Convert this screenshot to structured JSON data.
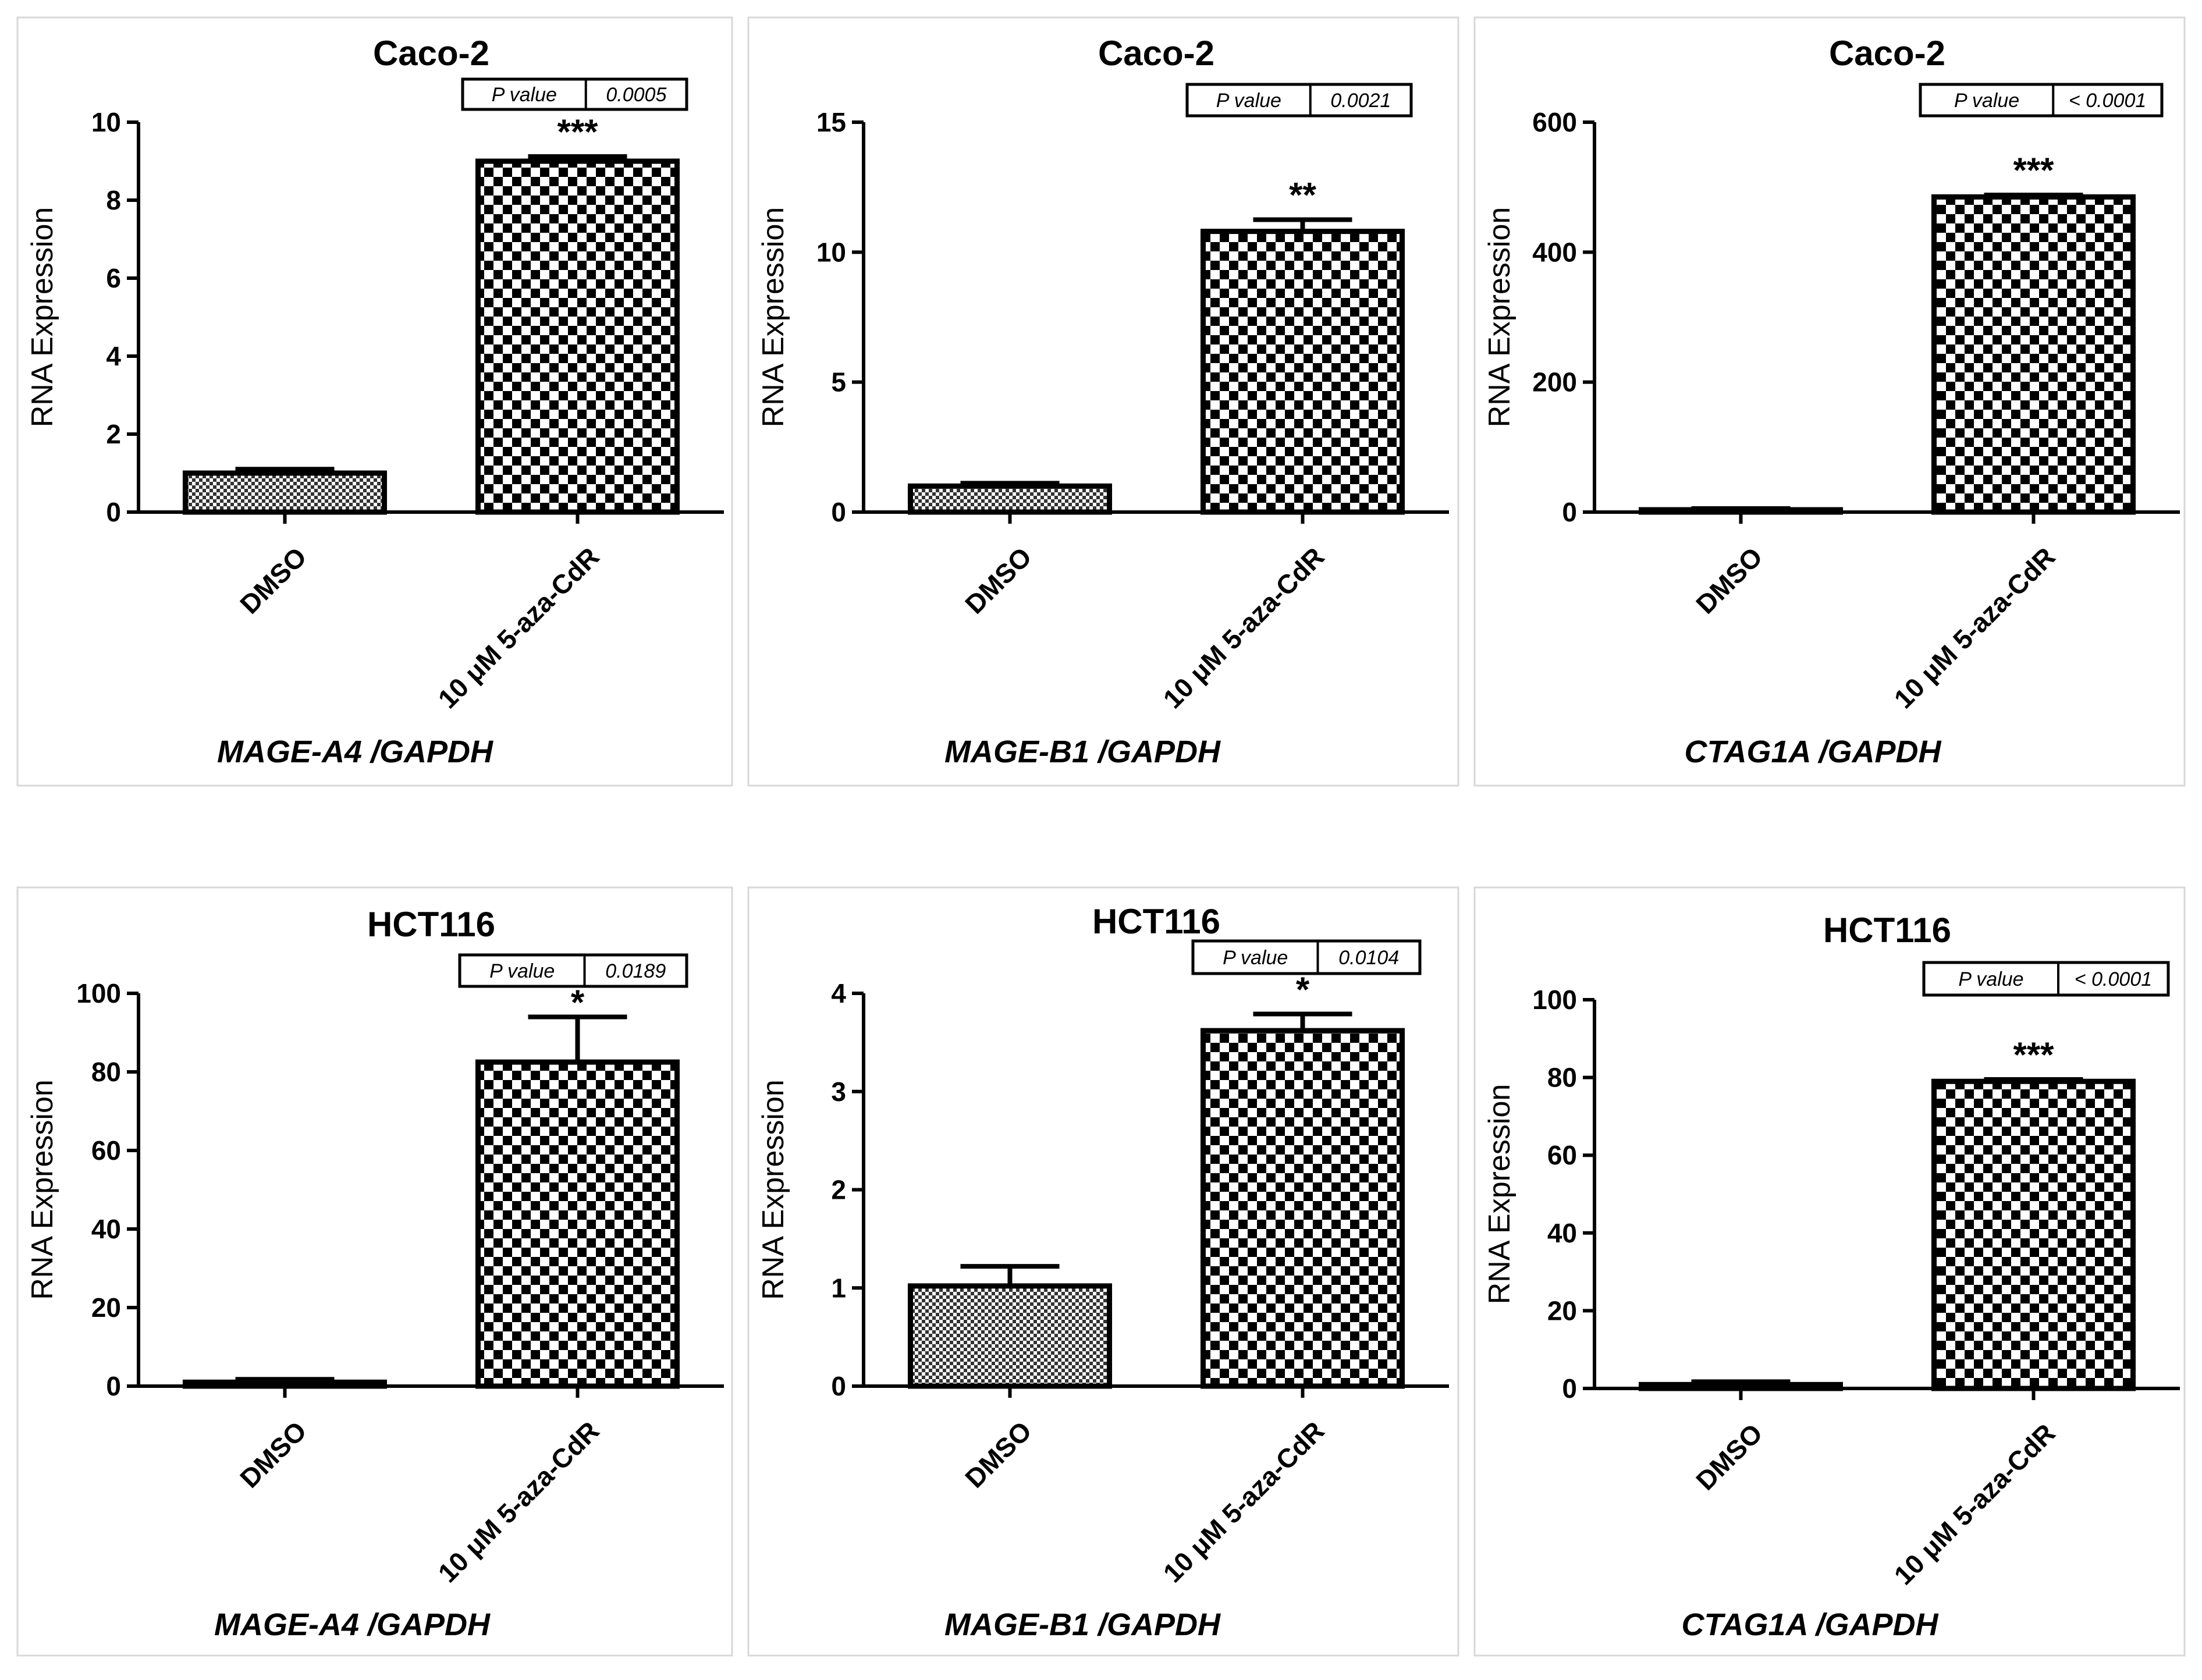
{
  "chart_data": [
    {
      "type": "bar",
      "title": "Caco-2",
      "ylabel": "RNA Expression",
      "gene_label": "MAGE-A4 /GAPDH",
      "categories": [
        "DMSO",
        "10 μM 5-aza-CdR"
      ],
      "values": [
        1.0,
        9.0
      ],
      "errors": [
        0.1,
        0.12
      ],
      "ylim": [
        0,
        10
      ],
      "yticks": [
        0,
        2,
        4,
        6,
        8,
        10
      ],
      "pvalue_label": "P value",
      "pvalue": "0.0005",
      "significance": "***"
    },
    {
      "type": "bar",
      "title": "Caco-2",
      "ylabel": "RNA Expression",
      "gene_label": "MAGE-B1 /GAPDH",
      "categories": [
        "DMSO",
        "10 μM 5-aza-CdR"
      ],
      "values": [
        1.0,
        10.8
      ],
      "errors": [
        0.05,
        0.45
      ],
      "ylim": [
        0,
        15
      ],
      "yticks": [
        0,
        5,
        10,
        15
      ],
      "pvalue_label": "P value",
      "pvalue": "0.0021",
      "significance": "**"
    },
    {
      "type": "bar",
      "title": "Caco-2",
      "ylabel": "RNA Expression",
      "gene_label": "CTAG1A /GAPDH",
      "categories": [
        "DMSO",
        "10 μM 5-aza-CdR"
      ],
      "values": [
        1.0,
        485
      ],
      "errors": [
        0.2,
        3
      ],
      "ylim": [
        0,
        600
      ],
      "yticks": [
        0,
        200,
        400,
        600
      ],
      "pvalue_label": "P value",
      "pvalue": "< 0.0001",
      "significance": "***"
    },
    {
      "type": "bar",
      "title": "HCT116",
      "ylabel": "RNA Expression",
      "gene_label": "MAGE-A4 /GAPDH",
      "categories": [
        "DMSO",
        "10 μM 5-aza-CdR"
      ],
      "values": [
        1.0,
        82.5
      ],
      "errors": [
        0.2,
        11.5
      ],
      "ylim": [
        0,
        100
      ],
      "yticks": [
        0,
        20,
        40,
        60,
        80,
        100
      ],
      "pvalue_label": "P value",
      "pvalue": "0.0189",
      "significance": "*"
    },
    {
      "type": "bar",
      "title": "HCT116",
      "ylabel": "RNA Expression",
      "gene_label": "MAGE-B1 /GAPDH",
      "categories": [
        "DMSO",
        "10 μM 5-aza-CdR"
      ],
      "values": [
        1.02,
        3.62
      ],
      "errors": [
        0.2,
        0.17
      ],
      "ylim": [
        0,
        4
      ],
      "yticks": [
        0,
        1,
        2,
        3,
        4
      ],
      "pvalue_label": "P value",
      "pvalue": "0.0104",
      "significance": "*"
    },
    {
      "type": "bar",
      "title": "HCT116",
      "ylabel": "RNA Expression",
      "gene_label": "CTAG1A /GAPDH",
      "categories": [
        "DMSO",
        "10 μM 5-aza-CdR"
      ],
      "values": [
        1.0,
        79
      ],
      "errors": [
        0.2,
        0.5
      ],
      "ylim": [
        0,
        100
      ],
      "yticks": [
        0,
        20,
        40,
        60,
        80,
        100
      ],
      "pvalue_label": "P value",
      "pvalue": "< 0.0001",
      "significance": "***"
    }
  ],
  "colors": {
    "background": "#ffffff",
    "axis": "#000000",
    "panel_border": "#d8d8d8"
  }
}
